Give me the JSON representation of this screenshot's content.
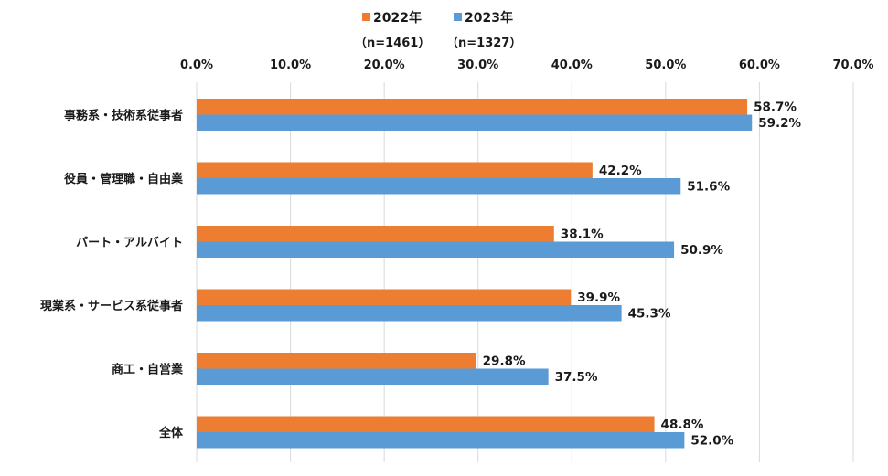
{
  "chart_data": {
    "type": "bar",
    "orientation": "horizontal",
    "categories": [
      "事務系・技術系従事者",
      "役員・管理職・自由業",
      "パート・アルバイト",
      "現業系・サービス系従事者",
      "商工・自営業",
      "全体"
    ],
    "series": [
      {
        "name": "2022年",
        "n_label": "（n=1461）",
        "color": "#ED7D31",
        "values": [
          58.7,
          42.2,
          38.1,
          39.9,
          29.8,
          48.8
        ]
      },
      {
        "name": "2023年",
        "n_label": "（n=1327）",
        "color": "#5B9BD5",
        "values": [
          59.2,
          51.6,
          50.9,
          45.3,
          37.5,
          52.0
        ]
      }
    ],
    "xlim": [
      0,
      70
    ],
    "xticks": [
      "0.0%",
      "10.0%",
      "20.0%",
      "30.0%",
      "40.0%",
      "50.0%",
      "60.0%",
      "70.0%"
    ],
    "value_labels": [
      [
        "58.7%",
        "42.2%",
        "38.1%",
        "39.9%",
        "29.8%",
        "48.8%"
      ],
      [
        "59.2%",
        "51.6%",
        "50.9%",
        "45.3%",
        "37.5%",
        "52.0%"
      ]
    ],
    "axis_position": "top",
    "grid": true,
    "legend": "top-center"
  }
}
